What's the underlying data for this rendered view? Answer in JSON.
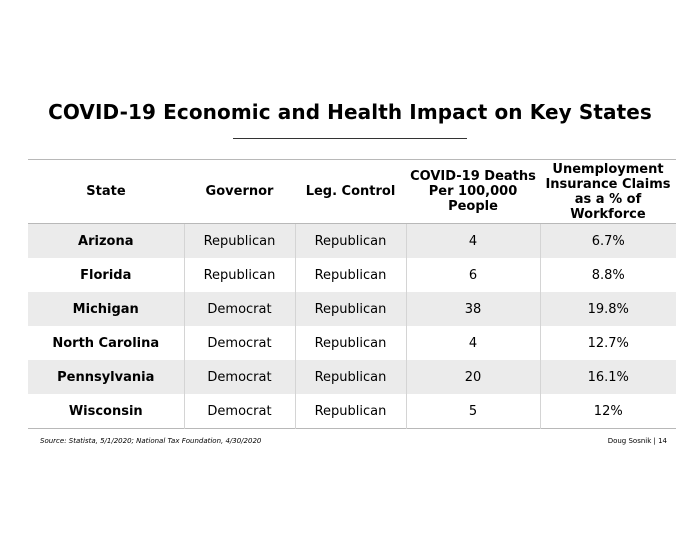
{
  "title": "COVID-19 Economic and Health Impact on Key States",
  "table": {
    "headers": [
      "State",
      "Governor",
      "Leg. Control",
      "COVID-19 Deaths Per 100,000 People",
      "Unemployment Insurance Claims as a % of Workforce"
    ],
    "rows": [
      [
        "Arizona",
        "Republican",
        "Republican",
        "4",
        "6.7%"
      ],
      [
        "Florida",
        "Republican",
        "Republican",
        "6",
        "8.8%"
      ],
      [
        "Michigan",
        "Democrat",
        "Republican",
        "38",
        "19.8%"
      ],
      [
        "North Carolina",
        "Democrat",
        "Republican",
        "4",
        "12.7%"
      ],
      [
        "Pennsylvania",
        "Democrat",
        "Republican",
        "20",
        "16.1%"
      ],
      [
        "Wisconsin",
        "Democrat",
        "Republican",
        "5",
        "12%"
      ]
    ],
    "shading": [
      "#ebebeb",
      "#ffffff"
    ]
  },
  "source": "Source: Statista, 5/1/2020; National Tax Foundation, 4/30/2020",
  "footer": "Doug Sosnik | 14"
}
